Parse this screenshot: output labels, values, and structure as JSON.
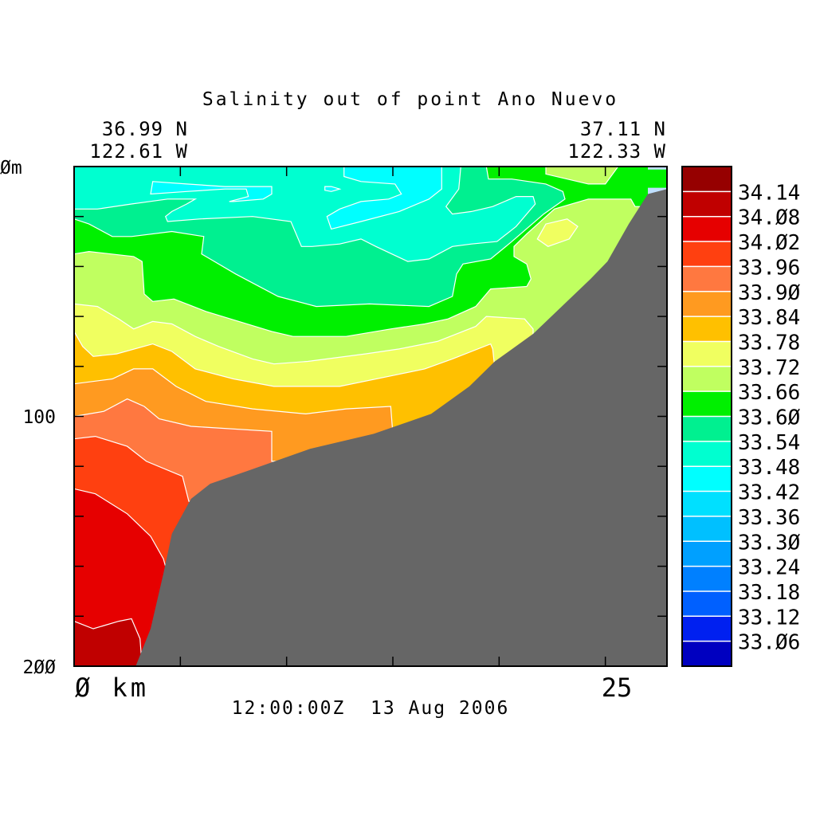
{
  "chart_data": {
    "type": "contour",
    "title": "Salinity out of point Ano Nuevo",
    "start_location": {
      "lat": "36.99 N",
      "lon": "122.61 W"
    },
    "end_location": {
      "lat": "37.11 N",
      "lon": "122.33 W"
    },
    "timestamp": "12:00:00Z  13 Aug 2006",
    "xlabel": "km",
    "ylabel": "m",
    "xlim": [
      0,
      27.9
    ],
    "ylim": [
      0,
      200
    ],
    "x_ticks": [
      5,
      10,
      15,
      20,
      25
    ],
    "y_ticks": [
      20,
      40,
      60,
      80,
      100,
      120,
      140,
      160,
      180
    ],
    "x_tick_labels": {
      "start": "Ø km",
      "end": "25"
    },
    "y_tick_labels": {
      "top": "Øm",
      "mid": "100",
      "bottom": "2ØØ"
    },
    "colorbar": {
      "colors": [
        "#960000",
        "#c00000",
        "#e60000",
        "#ff4010",
        "#ff7840",
        "#ff9a20",
        "#ffc000",
        "#f0ff60",
        "#c0ff60",
        "#00f000",
        "#00f090",
        "#00ffd0",
        "#00ffff",
        "#00e0ff",
        "#00c0ff",
        "#00a0ff",
        "#0080ff",
        "#0060ff",
        "#0020f0",
        "#0000c0"
      ],
      "labels": [
        "34.14",
        "34.Ø8",
        "34.Ø2",
        "33.96",
        "33.9Ø",
        "33.84",
        "33.78",
        "33.72",
        "33.66",
        "33.6Ø",
        "33.54",
        "33.48",
        "33.42",
        "33.36",
        "33.3Ø",
        "33.24",
        "33.18",
        "33.12",
        "33.Ø6"
      ]
    },
    "background_color": "#00ffd0",
    "regions": [
      {
        "level": "33.42-33.48",
        "color": "#00ffff",
        "points": [
          [
            12.7,
            0
          ],
          [
            12.7,
            4
          ],
          [
            13.5,
            6
          ],
          [
            15.1,
            7
          ],
          [
            15.4,
            11
          ],
          [
            14.8,
            13
          ],
          [
            13.5,
            14
          ],
          [
            12.5,
            17
          ],
          [
            11.9,
            20
          ],
          [
            12.1,
            25
          ],
          [
            13.5,
            22
          ],
          [
            15.3,
            18
          ],
          [
            16.7,
            13
          ],
          [
            17.3,
            9
          ],
          [
            17.3,
            0
          ]
        ]
      },
      {
        "level": "33.42-33.48",
        "color": "#00ffff",
        "points": [
          [
            3.7,
            6
          ],
          [
            5.3,
            7
          ],
          [
            7.1,
            8
          ],
          [
            9.3,
            8
          ],
          [
            9.3,
            11
          ],
          [
            8.9,
            13
          ],
          [
            7.5,
            14
          ],
          [
            7.3,
            14
          ],
          [
            8.2,
            12
          ],
          [
            8.1,
            9
          ],
          [
            7.1,
            9
          ],
          [
            5.3,
            10
          ],
          [
            3.6,
            11
          ]
        ]
      },
      {
        "level": "33.42-33.48",
        "color": "#00ffff",
        "points": [
          [
            11.8,
            8
          ],
          [
            12.1,
            8
          ],
          [
            12.5,
            9
          ],
          [
            12.1,
            10
          ],
          [
            11.8,
            9.5
          ]
        ]
      },
      {
        "level": "33.54-33.60",
        "color": "#00f090",
        "points": [
          [
            0,
            17
          ],
          [
            1.1,
            17
          ],
          [
            2.7,
            15
          ],
          [
            4.4,
            13
          ],
          [
            5.7,
            13
          ],
          [
            5.3,
            15
          ],
          [
            4.6,
            18
          ],
          [
            4.3,
            20
          ],
          [
            4.4,
            22
          ],
          [
            5.9,
            21
          ],
          [
            8.4,
            20
          ],
          [
            10.2,
            22
          ],
          [
            10.7,
            32
          ],
          [
            11.2,
            32
          ],
          [
            12.5,
            31
          ],
          [
            13.5,
            29
          ],
          [
            14.2,
            32
          ],
          [
            15.7,
            38
          ],
          [
            16.7,
            37
          ],
          [
            17.8,
            32
          ],
          [
            18.7,
            31
          ],
          [
            19.9,
            30
          ],
          [
            20.8,
            24
          ],
          [
            21.7,
            15
          ],
          [
            21.6,
            12
          ],
          [
            20.8,
            12
          ],
          [
            19.7,
            16
          ],
          [
            18.7,
            18
          ],
          [
            17.8,
            19
          ],
          [
            17.5,
            16
          ],
          [
            18.1,
            9
          ],
          [
            18.2,
            0
          ],
          [
            27.9,
            0
          ],
          [
            27.9,
            200
          ],
          [
            0,
            200
          ]
        ]
      },
      {
        "level": "33.60-33.66",
        "color": "#00f000",
        "points": [
          [
            0,
            21
          ],
          [
            0.7,
            23
          ],
          [
            1.8,
            28
          ],
          [
            2.7,
            28
          ],
          [
            4.6,
            26
          ],
          [
            6.1,
            28
          ],
          [
            6.0,
            35
          ],
          [
            6.4,
            37
          ],
          [
            7.6,
            43
          ],
          [
            9.6,
            52
          ],
          [
            11.4,
            56
          ],
          [
            13.9,
            55
          ],
          [
            16.7,
            56
          ],
          [
            17.8,
            52
          ],
          [
            18.0,
            43
          ],
          [
            18.3,
            39
          ],
          [
            19.6,
            37
          ],
          [
            20.6,
            30
          ],
          [
            22.1,
            19
          ],
          [
            23.1,
            13
          ],
          [
            23.0,
            10
          ],
          [
            22.2,
            7
          ],
          [
            20.6,
            5
          ],
          [
            19.5,
            5
          ],
          [
            19.4,
            0
          ],
          [
            27.9,
            0
          ],
          [
            27.9,
            200
          ],
          [
            0,
            200
          ]
        ]
      },
      {
        "level": "33.66-33.72",
        "color": "#c0ff60",
        "points": [
          [
            0,
            35
          ],
          [
            0.7,
            34
          ],
          [
            2.8,
            36
          ],
          [
            3.2,
            38
          ],
          [
            3.3,
            51
          ],
          [
            3.7,
            54
          ],
          [
            4.7,
            53
          ],
          [
            5.3,
            55
          ],
          [
            6.2,
            58
          ],
          [
            9.3,
            66
          ],
          [
            10.3,
            68
          ],
          [
            12.8,
            68
          ],
          [
            14.9,
            65
          ],
          [
            16.5,
            63
          ],
          [
            17.6,
            61
          ],
          [
            18.9,
            56
          ],
          [
            19.6,
            49
          ],
          [
            21.3,
            48
          ],
          [
            21.5,
            45
          ],
          [
            21.3,
            39
          ],
          [
            20.7,
            36
          ],
          [
            20.7,
            32
          ],
          [
            21.3,
            27
          ],
          [
            22.6,
            17
          ],
          [
            24.2,
            13
          ],
          [
            26.2,
            13
          ],
          [
            26.4,
            16
          ],
          [
            27.9,
            16
          ],
          [
            27.9,
            200
          ],
          [
            0,
            200
          ]
        ]
      },
      {
        "level": "33.66-33.72",
        "color": "#c0ff60",
        "points": [
          [
            22.2,
            0
          ],
          [
            22.2,
            3
          ],
          [
            24.2,
            7
          ],
          [
            25.0,
            7
          ],
          [
            25.6,
            0
          ]
        ]
      },
      {
        "level": "33.72-33.78",
        "color": "#f0ff60",
        "points": [
          [
            21.8,
            29
          ],
          [
            22.2,
            23
          ],
          [
            23.2,
            21
          ],
          [
            23.7,
            24
          ],
          [
            23.3,
            29
          ],
          [
            22.3,
            32
          ]
        ]
      },
      {
        "level": "33.72-33.78",
        "color": "#f0ff60",
        "points": [
          [
            0,
            55
          ],
          [
            1.1,
            56
          ],
          [
            2.1,
            61
          ],
          [
            2.8,
            65
          ],
          [
            3.7,
            62
          ],
          [
            4.6,
            63
          ],
          [
            5.7,
            68
          ],
          [
            6.8,
            72
          ],
          [
            8.4,
            77
          ],
          [
            9.4,
            79
          ],
          [
            11.0,
            78
          ],
          [
            13.7,
            75
          ],
          [
            15.3,
            73
          ],
          [
            17.1,
            70
          ],
          [
            18.9,
            64
          ],
          [
            19.4,
            60
          ],
          [
            21.2,
            61
          ],
          [
            21.6,
            65
          ],
          [
            21.6,
            68
          ],
          [
            27.9,
            68
          ],
          [
            27.9,
            200
          ],
          [
            0,
            200
          ]
        ]
      },
      {
        "level": "33.78-33.84",
        "color": "#ffc000",
        "points": [
          [
            0,
            66
          ],
          [
            0.4,
            72
          ],
          [
            0.9,
            76
          ],
          [
            2.0,
            75
          ],
          [
            3.7,
            71
          ],
          [
            4.6,
            74
          ],
          [
            5.7,
            81
          ],
          [
            7.5,
            85
          ],
          [
            9.4,
            88
          ],
          [
            12.5,
            88
          ],
          [
            14.8,
            84
          ],
          [
            16.5,
            81
          ],
          [
            17.8,
            77
          ],
          [
            19.6,
            71
          ],
          [
            19.7,
            73
          ],
          [
            19.8,
            81
          ],
          [
            27.9,
            81
          ],
          [
            27.9,
            200
          ],
          [
            0,
            200
          ]
        ]
      },
      {
        "level": "33.84-33.90",
        "color": "#ff9a20",
        "points": [
          [
            0,
            87
          ],
          [
            1.8,
            85
          ],
          [
            2.8,
            81
          ],
          [
            3.7,
            81
          ],
          [
            4.8,
            88
          ],
          [
            6.2,
            94
          ],
          [
            8.4,
            97
          ],
          [
            10.9,
            99
          ],
          [
            12.8,
            97
          ],
          [
            14.9,
            96
          ],
          [
            15.0,
            107
          ],
          [
            27.9,
            107
          ],
          [
            27.9,
            200
          ],
          [
            0,
            200
          ]
        ]
      },
      {
        "level": "33.90-33.96",
        "color": "#ff7840",
        "points": [
          [
            0,
            100
          ],
          [
            1.4,
            98
          ],
          [
            2.5,
            93
          ],
          [
            3.3,
            96
          ],
          [
            4.0,
            101
          ],
          [
            5.5,
            104
          ],
          [
            9.3,
            106
          ],
          [
            9.3,
            118
          ],
          [
            12.3,
            118
          ],
          [
            27.9,
            118
          ],
          [
            27.9,
            200
          ],
          [
            0,
            200
          ]
        ]
      },
      {
        "level": "33.96-34.02",
        "color": "#ff4010",
        "points": [
          [
            0,
            109
          ],
          [
            1.0,
            108
          ],
          [
            2.5,
            112
          ],
          [
            3.4,
            118
          ],
          [
            5.1,
            124
          ],
          [
            5.4,
            134
          ],
          [
            7.0,
            134
          ],
          [
            27.9,
            134
          ],
          [
            27.9,
            200
          ],
          [
            0,
            200
          ]
        ]
      },
      {
        "level": "34.02-34.08",
        "color": "#e60000",
        "points": [
          [
            0,
            129
          ],
          [
            1.0,
            131
          ],
          [
            2.5,
            139
          ],
          [
            3.6,
            148
          ],
          [
            4.2,
            157
          ],
          [
            4.5,
            166
          ],
          [
            27.9,
            166
          ],
          [
            27.9,
            200
          ],
          [
            0,
            200
          ]
        ]
      },
      {
        "level": "34.08-34.14",
        "color": "#c00000",
        "points": [
          [
            0,
            182
          ],
          [
            0.9,
            185
          ],
          [
            2.1,
            182
          ],
          [
            2.7,
            181
          ],
          [
            3.1,
            189
          ],
          [
            3.2,
            200
          ],
          [
            0,
            200
          ]
        ]
      },
      {
        "level": "missing",
        "color": "#c0e0ff",
        "points": [
          [
            27.0,
            0
          ],
          [
            27.9,
            0
          ],
          [
            27.9,
            1.2
          ],
          [
            27.0,
            1.2
          ]
        ]
      },
      {
        "level": "missing",
        "color": "#c0e0ff",
        "points": [
          [
            27.0,
            8.5
          ],
          [
            27.9,
            8.5
          ],
          [
            27.9,
            11
          ],
          [
            27.0,
            11
          ]
        ]
      }
    ],
    "bathymetry": {
      "color": "#666666",
      "points": [
        [
          2.9,
          200
        ],
        [
          3.6,
          185
        ],
        [
          4.2,
          163
        ],
        [
          4.6,
          147
        ],
        [
          5.5,
          133
        ],
        [
          6.4,
          127
        ],
        [
          8.1,
          122
        ],
        [
          11.1,
          113
        ],
        [
          14.1,
          107
        ],
        [
          16.8,
          99
        ],
        [
          18.6,
          88
        ],
        [
          19.8,
          78
        ],
        [
          21.6,
          67
        ],
        [
          24.3,
          45
        ],
        [
          25.1,
          38
        ],
        [
          26.1,
          23
        ],
        [
          27.0,
          11
        ],
        [
          27.9,
          9
        ],
        [
          27.9,
          200
        ]
      ]
    }
  }
}
